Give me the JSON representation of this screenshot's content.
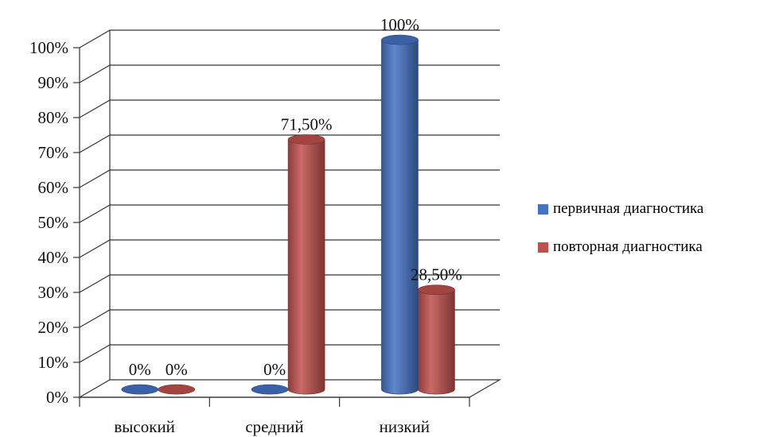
{
  "chart_data": {
    "type": "bar",
    "style": "3d-cylinder",
    "categories": [
      "высокий",
      "средний",
      "низкий"
    ],
    "series": [
      {
        "name": "первичная диагностика",
        "color": "#4472C4",
        "values": [
          0,
          0,
          100
        ],
        "labels": [
          "0%",
          "0%",
          "100%"
        ]
      },
      {
        "name": "повторная диагностика",
        "color": "#C0504D",
        "values": [
          0,
          71.5,
          28.5
        ],
        "labels": [
          "0%",
          "71,50%",
          "28,50%"
        ]
      }
    ],
    "y_ticks": [
      "0%",
      "10%",
      "20%",
      "30%",
      "40%",
      "50%",
      "60%",
      "70%",
      "80%",
      "90%",
      "100%"
    ],
    "ylim": [
      0,
      100
    ],
    "grid": true,
    "legend_position": "right"
  }
}
